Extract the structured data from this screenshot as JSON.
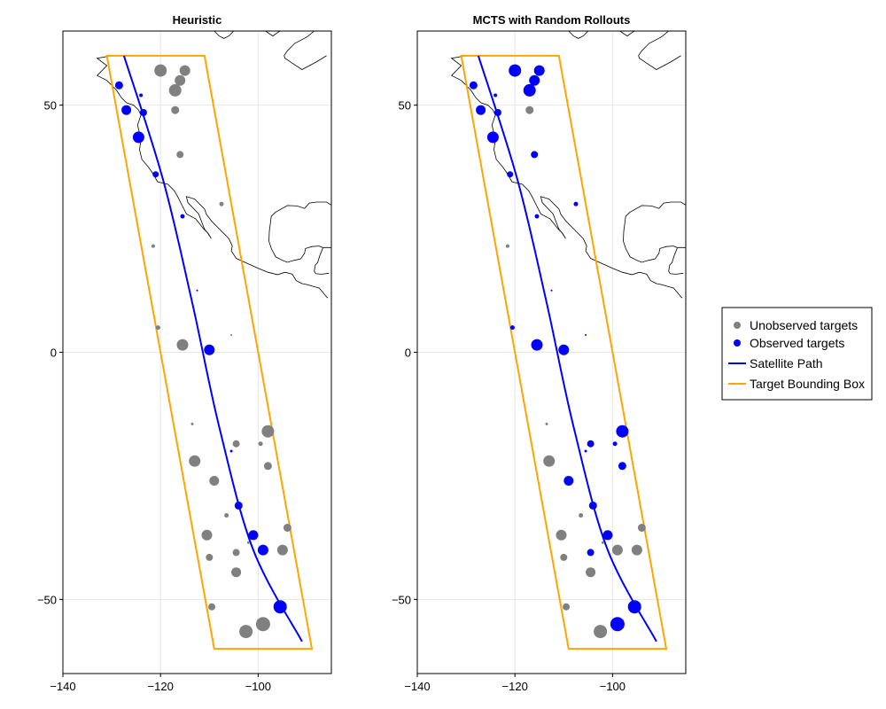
{
  "colors": {
    "unobserved": "#808080",
    "observed": "#0000ff",
    "path": "#0000ff",
    "bbox": "#ffa500",
    "coast": "#000000",
    "grid": "#e6e6e6"
  },
  "legend": {
    "placement": "right",
    "entries": [
      {
        "label": "Unobserved targets",
        "kind": "marker",
        "color": "#808080"
      },
      {
        "label": "Observed targets",
        "kind": "marker",
        "color": "#0000ff"
      },
      {
        "label": "Satellite Path",
        "kind": "line",
        "color": "#0000ff"
      },
      {
        "label": "Target Bounding Box",
        "kind": "line",
        "color": "#ffa500"
      }
    ]
  },
  "chart_data": [
    {
      "type": "scatter",
      "title": "Heuristic",
      "xlim": [
        -140,
        -85
      ],
      "ylim": [
        -65,
        65
      ],
      "xticks": [
        -140,
        -120,
        -100
      ],
      "yticks": [
        -50,
        0,
        50
      ],
      "grid": true,
      "bounding_box": [
        [
          -131,
          60
        ],
        [
          -111,
          60
        ],
        [
          -89,
          -60
        ],
        [
          -109,
          -60
        ]
      ],
      "satellite_path": [
        [
          -127.5,
          60
        ],
        [
          -119.5,
          35
        ],
        [
          -113.5,
          10
        ],
        [
          -108,
          -15
        ],
        [
          -101,
          -40
        ],
        [
          -91,
          -58.5
        ]
      ],
      "targets": [
        {
          "lon": -120,
          "lat": 57,
          "size": 14,
          "observed": false
        },
        {
          "lon": -115,
          "lat": 57,
          "size": 12,
          "observed": false
        },
        {
          "lon": -116,
          "lat": 55,
          "size": 12,
          "observed": false
        },
        {
          "lon": -117,
          "lat": 53,
          "size": 14,
          "observed": false
        },
        {
          "lon": -128.5,
          "lat": 54,
          "size": 9,
          "observed": true
        },
        {
          "lon": -124,
          "lat": 52,
          "size": 4,
          "observed": true
        },
        {
          "lon": -127,
          "lat": 49,
          "size": 11,
          "observed": true
        },
        {
          "lon": -123.5,
          "lat": 48.5,
          "size": 8,
          "observed": true
        },
        {
          "lon": -117,
          "lat": 49,
          "size": 9,
          "observed": false
        },
        {
          "lon": -124.5,
          "lat": 43.5,
          "size": 13,
          "observed": true
        },
        {
          "lon": -116,
          "lat": 40,
          "size": 8,
          "observed": false
        },
        {
          "lon": -121,
          "lat": 36,
          "size": 7,
          "observed": true
        },
        {
          "lon": -107.5,
          "lat": 30,
          "size": 5,
          "observed": false
        },
        {
          "lon": -115.5,
          "lat": 27.5,
          "size": 5,
          "observed": true
        },
        {
          "lon": -121.5,
          "lat": 21.5,
          "size": 4,
          "observed": false
        },
        {
          "lon": -112.5,
          "lat": 12.5,
          "size": 2,
          "observed": true
        },
        {
          "lon": -120.5,
          "lat": 5,
          "size": 5,
          "observed": false
        },
        {
          "lon": -115.5,
          "lat": 1.5,
          "size": 13,
          "observed": false
        },
        {
          "lon": -105.5,
          "lat": 3.5,
          "size": 2,
          "observed": false
        },
        {
          "lon": -110,
          "lat": 0.5,
          "size": 12,
          "observed": true
        },
        {
          "lon": -113.5,
          "lat": -14.5,
          "size": 3,
          "observed": false
        },
        {
          "lon": -98,
          "lat": -16,
          "size": 14,
          "observed": false
        },
        {
          "lon": -104.5,
          "lat": -18.5,
          "size": 8,
          "observed": false
        },
        {
          "lon": -99.5,
          "lat": -18.5,
          "size": 5,
          "observed": false
        },
        {
          "lon": -105.5,
          "lat": -20,
          "size": 3,
          "observed": true
        },
        {
          "lon": -113,
          "lat": -22,
          "size": 13,
          "observed": false
        },
        {
          "lon": -98,
          "lat": -23,
          "size": 9,
          "observed": false
        },
        {
          "lon": -109,
          "lat": -26,
          "size": 11,
          "observed": false
        },
        {
          "lon": -104,
          "lat": -31,
          "size": 9,
          "observed": true
        },
        {
          "lon": -106.5,
          "lat": -33,
          "size": 5,
          "observed": false
        },
        {
          "lon": -94,
          "lat": -35.5,
          "size": 9,
          "observed": false
        },
        {
          "lon": -110.5,
          "lat": -37,
          "size": 12,
          "observed": false
        },
        {
          "lon": -101,
          "lat": -37,
          "size": 11,
          "observed": true
        },
        {
          "lon": -102,
          "lat": -38.5,
          "size": 3,
          "observed": false
        },
        {
          "lon": -99,
          "lat": -40,
          "size": 12,
          "observed": true
        },
        {
          "lon": -95,
          "lat": -40,
          "size": 12,
          "observed": false
        },
        {
          "lon": -104.5,
          "lat": -40.5,
          "size": 8,
          "observed": false
        },
        {
          "lon": -110,
          "lat": -41.5,
          "size": 8,
          "observed": false
        },
        {
          "lon": -104.5,
          "lat": -44.5,
          "size": 11,
          "observed": false
        },
        {
          "lon": -95.5,
          "lat": -51.5,
          "size": 15,
          "observed": true
        },
        {
          "lon": -109.5,
          "lat": -51.5,
          "size": 8,
          "observed": false
        },
        {
          "lon": -99,
          "lat": -55,
          "size": 16,
          "observed": false
        },
        {
          "lon": -102.5,
          "lat": -56.5,
          "size": 15,
          "observed": false
        }
      ]
    },
    {
      "type": "scatter",
      "title": "MCTS with Random Rollouts",
      "xlim": [
        -140,
        -85
      ],
      "ylim": [
        -65,
        65
      ],
      "xticks": [
        -140,
        -120,
        -100
      ],
      "yticks": [
        -50,
        0,
        50
      ],
      "grid": true,
      "bounding_box": [
        [
          -131,
          60
        ],
        [
          -111,
          60
        ],
        [
          -89,
          -60
        ],
        [
          -109,
          -60
        ]
      ],
      "satellite_path": [
        [
          -127.5,
          60
        ],
        [
          -119.5,
          35
        ],
        [
          -113.5,
          10
        ],
        [
          -108,
          -15
        ],
        [
          -101,
          -40
        ],
        [
          -91,
          -58.5
        ]
      ],
      "targets": [
        {
          "lon": -120,
          "lat": 57,
          "size": 14,
          "observed": true
        },
        {
          "lon": -115,
          "lat": 57,
          "size": 12,
          "observed": true
        },
        {
          "lon": -116,
          "lat": 55,
          "size": 12,
          "observed": true
        },
        {
          "lon": -117,
          "lat": 53,
          "size": 14,
          "observed": true
        },
        {
          "lon": -128.5,
          "lat": 54,
          "size": 9,
          "observed": true
        },
        {
          "lon": -124,
          "lat": 52,
          "size": 4,
          "observed": true
        },
        {
          "lon": -127,
          "lat": 49,
          "size": 11,
          "observed": true
        },
        {
          "lon": -123.5,
          "lat": 48.5,
          "size": 8,
          "observed": true
        },
        {
          "lon": -117,
          "lat": 49,
          "size": 9,
          "observed": false
        },
        {
          "lon": -124.5,
          "lat": 43.5,
          "size": 13,
          "observed": true
        },
        {
          "lon": -116,
          "lat": 40,
          "size": 8,
          "observed": true
        },
        {
          "lon": -121,
          "lat": 36,
          "size": 7,
          "observed": true
        },
        {
          "lon": -107.5,
          "lat": 30,
          "size": 5,
          "observed": true
        },
        {
          "lon": -115.5,
          "lat": 27.5,
          "size": 5,
          "observed": true
        },
        {
          "lon": -121.5,
          "lat": 21.5,
          "size": 4,
          "observed": false
        },
        {
          "lon": -112.5,
          "lat": 12.5,
          "size": 2,
          "observed": true
        },
        {
          "lon": -120.5,
          "lat": 5,
          "size": 5,
          "observed": true
        },
        {
          "lon": -115.5,
          "lat": 1.5,
          "size": 13,
          "observed": true
        },
        {
          "lon": -105.5,
          "lat": 3.5,
          "size": 2,
          "observed": true
        },
        {
          "lon": -110,
          "lat": 0.5,
          "size": 12,
          "observed": true
        },
        {
          "lon": -113.5,
          "lat": -14.5,
          "size": 3,
          "observed": false
        },
        {
          "lon": -98,
          "lat": -16,
          "size": 14,
          "observed": true
        },
        {
          "lon": -104.5,
          "lat": -18.5,
          "size": 8,
          "observed": true
        },
        {
          "lon": -99.5,
          "lat": -18.5,
          "size": 5,
          "observed": true
        },
        {
          "lon": -105.5,
          "lat": -20,
          "size": 3,
          "observed": true
        },
        {
          "lon": -113,
          "lat": -22,
          "size": 13,
          "observed": false
        },
        {
          "lon": -98,
          "lat": -23,
          "size": 9,
          "observed": true
        },
        {
          "lon": -109,
          "lat": -26,
          "size": 11,
          "observed": true
        },
        {
          "lon": -104,
          "lat": -31,
          "size": 9,
          "observed": true
        },
        {
          "lon": -106.5,
          "lat": -33,
          "size": 5,
          "observed": false
        },
        {
          "lon": -94,
          "lat": -35.5,
          "size": 9,
          "observed": false
        },
        {
          "lon": -110.5,
          "lat": -37,
          "size": 12,
          "observed": false
        },
        {
          "lon": -101,
          "lat": -37,
          "size": 11,
          "observed": true
        },
        {
          "lon": -102,
          "lat": -38.5,
          "size": 3,
          "observed": false
        },
        {
          "lon": -99,
          "lat": -40,
          "size": 12,
          "observed": false
        },
        {
          "lon": -95,
          "lat": -40,
          "size": 12,
          "observed": false
        },
        {
          "lon": -104.5,
          "lat": -40.5,
          "size": 8,
          "observed": true
        },
        {
          "lon": -110,
          "lat": -41.5,
          "size": 8,
          "observed": false
        },
        {
          "lon": -104.5,
          "lat": -44.5,
          "size": 11,
          "observed": false
        },
        {
          "lon": -95.5,
          "lat": -51.5,
          "size": 15,
          "observed": true
        },
        {
          "lon": -109.5,
          "lat": -51.5,
          "size": 8,
          "observed": false
        },
        {
          "lon": -99,
          "lat": -55,
          "size": 16,
          "observed": true
        },
        {
          "lon": -102.5,
          "lat": -56.5,
          "size": 15,
          "observed": false
        }
      ]
    }
  ]
}
